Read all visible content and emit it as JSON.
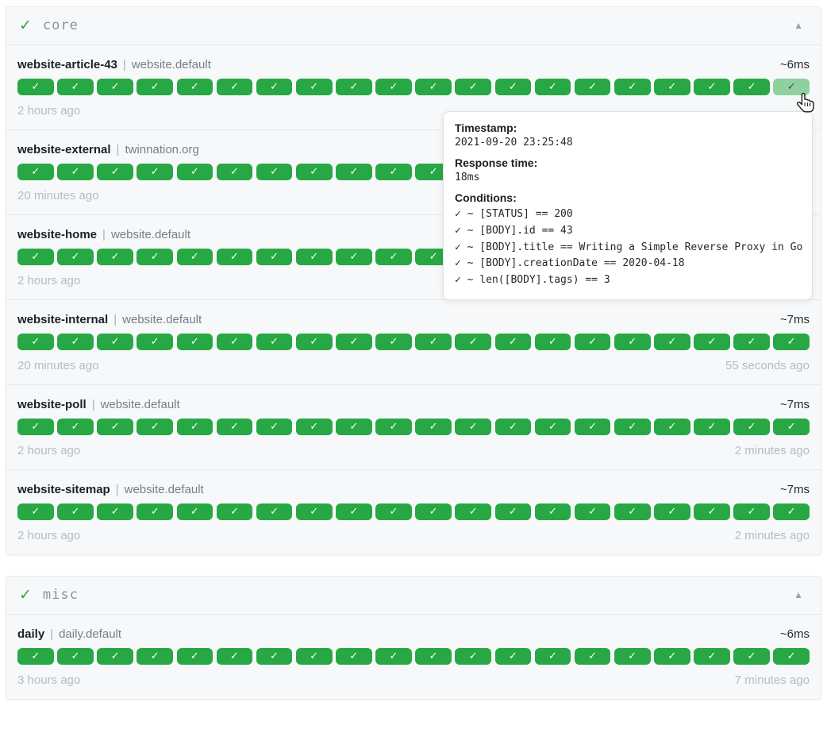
{
  "icons": {
    "group_status_check": "✓",
    "collapse_arrow": "▲",
    "badge_check": "✓",
    "cursor": "hand-pointer"
  },
  "colors": {
    "badge_green": "#28a745",
    "section_bg": "#f7f8f9",
    "tooltip_bg": "#ffffff",
    "muted_text": "#b5bcc3"
  },
  "separator": "|",
  "groups": [
    {
      "name": "core",
      "status": "up",
      "endpoints": [
        {
          "name": "website-article-43",
          "group": "website.default",
          "response_time": "~6ms",
          "first_time": "2 hours ago",
          "last_time": "",
          "checks": 20,
          "hovered_last": true
        },
        {
          "name": "website-external",
          "group": "twinnation.org",
          "response_time": "",
          "first_time": "20 minutes ago",
          "last_time": "",
          "checks": 20,
          "hovered_last": false
        },
        {
          "name": "website-home",
          "group": "website.default",
          "response_time": "",
          "first_time": "2 hours ago",
          "last_time": "",
          "checks": 20,
          "hovered_last": false
        },
        {
          "name": "website-internal",
          "group": "website.default",
          "response_time": "~7ms",
          "first_time": "20 minutes ago",
          "last_time": "55 seconds ago",
          "checks": 20,
          "hovered_last": false
        },
        {
          "name": "website-poll",
          "group": "website.default",
          "response_time": "~7ms",
          "first_time": "2 hours ago",
          "last_time": "2 minutes ago",
          "checks": 20,
          "hovered_last": false
        },
        {
          "name": "website-sitemap",
          "group": "website.default",
          "response_time": "~7ms",
          "first_time": "2 hours ago",
          "last_time": "2 minutes ago",
          "checks": 20,
          "hovered_last": false
        }
      ]
    },
    {
      "name": "misc",
      "status": "up",
      "endpoints": [
        {
          "name": "daily",
          "group": "daily.default",
          "response_time": "~6ms",
          "first_time": "3 hours ago",
          "last_time": "7 minutes ago",
          "checks": 20,
          "hovered_last": false
        }
      ]
    }
  ],
  "tooltip": {
    "timestamp_label": "Timestamp:",
    "timestamp_value": "2021-09-20 23:25:48",
    "response_label": "Response time:",
    "response_value": "18ms",
    "conditions_label": "Conditions:",
    "conditions": [
      "✓ ~ [STATUS] == 200",
      "✓ ~ [BODY].id == 43",
      "✓ ~ [BODY].title == Writing a Simple Reverse Proxy in Go",
      "✓ ~ [BODY].creationDate == 2020-04-18",
      "✓ ~ len([BODY].tags) == 3"
    ]
  }
}
